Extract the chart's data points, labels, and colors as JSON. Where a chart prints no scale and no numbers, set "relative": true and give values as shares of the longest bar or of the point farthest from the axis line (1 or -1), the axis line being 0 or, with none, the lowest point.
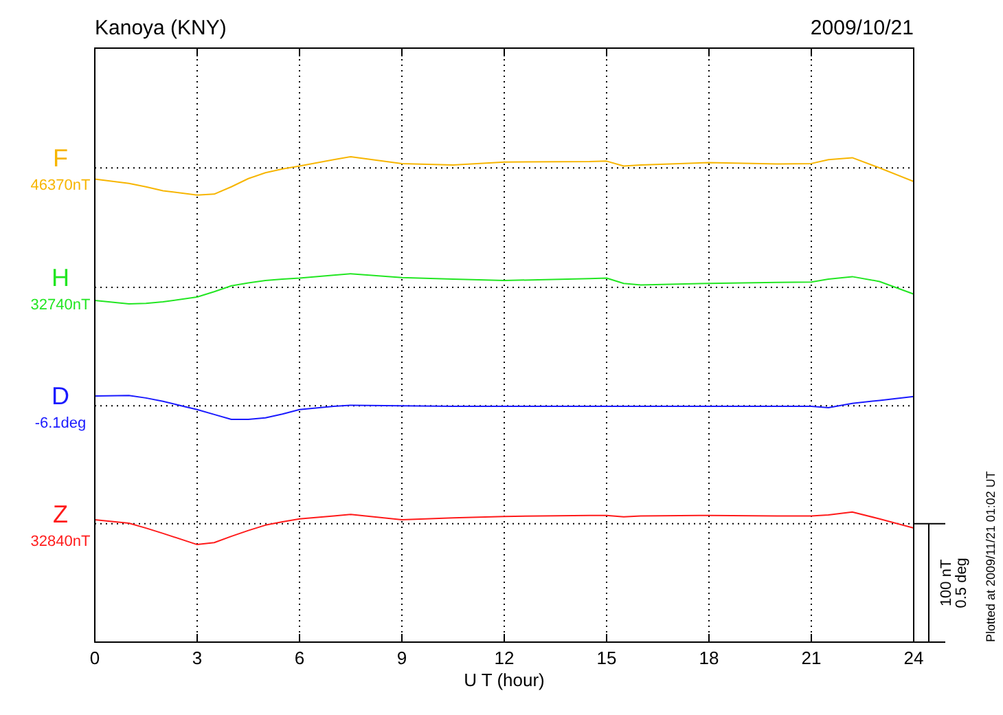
{
  "chart_data": {
    "type": "line",
    "title": "Kanoya (KNY)",
    "subtitle": "2009/10/21",
    "xlabel": "U T (hour)",
    "relative": true,
    "grid": "x",
    "tick_labels": "x",
    "xlim": [
      0,
      24
    ],
    "xticks": [
      0,
      3,
      6,
      9,
      12,
      15,
      18,
      21,
      24
    ],
    "x": [
      0,
      1,
      1.5,
      2,
      3,
      3.5,
      4,
      4.5,
      5,
      5.5,
      6,
      7,
      7.5,
      9,
      10.5,
      12,
      14.5,
      15,
      15.5,
      16,
      18,
      20,
      21,
      21.5,
      22.2,
      23,
      24
    ],
    "series": [
      {
        "name": "F",
        "color": "#f7b500",
        "values": [
          0.954,
          0.945,
          0.938,
          0.93,
          0.921,
          0.923,
          0.938,
          0.955,
          0.967,
          0.975,
          0.981,
          0.994,
          1,
          0.986,
          0.983,
          0.989,
          0.99,
          0.991,
          0.981,
          0.983,
          0.988,
          0.985,
          0.986,
          0.994,
          0.998,
          0.977,
          0.949
        ]
      },
      {
        "name": "H",
        "color": "#22e622",
        "values": [
          0.704,
          0.697,
          0.698,
          0.701,
          0.711,
          0.722,
          0.734,
          0.74,
          0.745,
          0.748,
          0.75,
          0.756,
          0.759,
          0.751,
          0.748,
          0.745,
          0.749,
          0.75,
          0.739,
          0.736,
          0.739,
          0.741,
          0.742,
          0.748,
          0.753,
          0.743,
          0.717
        ]
      },
      {
        "name": "D",
        "color": "#1a1aff",
        "values": [
          0.507,
          0.508,
          0.503,
          0.496,
          0.479,
          0.469,
          0.459,
          0.459,
          0.462,
          0.47,
          0.479,
          0.486,
          0.488,
          0.487,
          0.486,
          0.486,
          0.486,
          0.486,
          0.486,
          0.486,
          0.486,
          0.486,
          0.486,
          0.483,
          0.492,
          0.498,
          0.506
        ]
      },
      {
        "name": "Z",
        "color": "#ff1a1a",
        "values": [
          0.252,
          0.245,
          0.235,
          0.224,
          0.201,
          0.205,
          0.218,
          0.23,
          0.241,
          0.248,
          0.254,
          0.26,
          0.263,
          0.252,
          0.256,
          0.259,
          0.261,
          0.261,
          0.258,
          0.26,
          0.261,
          0.26,
          0.26,
          0.262,
          0.268,
          0.254,
          0.235
        ]
      }
    ],
    "ref_lines": [
      {
        "axis": "y",
        "value": 0.977,
        "label": "46370nT",
        "line_style": "dotted"
      },
      {
        "axis": "y",
        "value": 0.731,
        "label": "32740nT",
        "line_style": "dotted"
      },
      {
        "axis": "y",
        "value": 0.487,
        "label": "-6.1deg",
        "line_style": "dotted"
      },
      {
        "axis": "y",
        "value": 0.244,
        "label": "32840nT",
        "line_style": "dotted"
      }
    ],
    "annotations": [
      "100 nT",
      "0.5 deg",
      "Plotted at 2009/11/21 01:02 UT"
    ]
  }
}
